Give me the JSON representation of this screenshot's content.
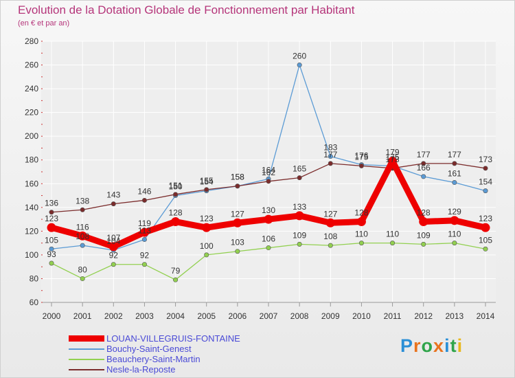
{
  "header": {
    "title": "Evolution de la Dotation Globale de Fonctionnement par Habitant",
    "subtitle": "(en € et par an)"
  },
  "logo": {
    "text": "Proxiti",
    "letter_colors": [
      "#2b8fd6",
      "#e8731e",
      "#2fa44a",
      "#e8731e",
      "#2b8fd6",
      "#2fa44a",
      "#e8b81e"
    ]
  },
  "colors": {
    "grid": "#ffffff",
    "axis_text": "#333333",
    "label_text": "#333333"
  },
  "chart_data": {
    "type": "line",
    "title": "Evolution de la Dotation Globale de Fonctionnement par Habitant",
    "ylabel": "(en € et par an)",
    "xlabel": "",
    "x": [
      "2000",
      "2001",
      "2002",
      "2003",
      "2004",
      "2005",
      "2006",
      "2007",
      "2008",
      "2009",
      "2010",
      "2011",
      "2012",
      "2013",
      "2014"
    ],
    "ylim": [
      60,
      280
    ],
    "yticks": [
      60,
      80,
      100,
      120,
      140,
      160,
      180,
      200,
      220,
      240,
      260,
      280
    ],
    "grid": true,
    "legend_position": "bottom-left",
    "series": [
      {
        "name": "LOUAN-VILLEGRUIS-FONTAINE",
        "color": "#ee0000",
        "values": [
          123,
          116,
          107,
          119,
          128,
          123,
          127,
          130,
          133,
          127,
          128,
          179,
          128,
          129,
          123
        ]
      },
      {
        "name": "Bouchy-Saint-Genest",
        "color": "#5b9bd5",
        "values": [
          105,
          108,
          104,
          113,
          150,
          154,
          158,
          164,
          260,
          183,
          176,
          175,
          166,
          161,
          154
        ]
      },
      {
        "name": "Beauchery-Saint-Martin",
        "color": "#92d050",
        "values": [
          93,
          80,
          92,
          92,
          79,
          100,
          103,
          106,
          109,
          108,
          110,
          110,
          109,
          110,
          105
        ]
      },
      {
        "name": "Nesle-la-Reposte",
        "color": "#7b2c2c",
        "values": [
          136,
          138,
          143,
          146,
          151,
          155,
          158,
          162,
          165,
          177,
          175,
          173,
          177,
          177,
          173
        ]
      }
    ]
  }
}
